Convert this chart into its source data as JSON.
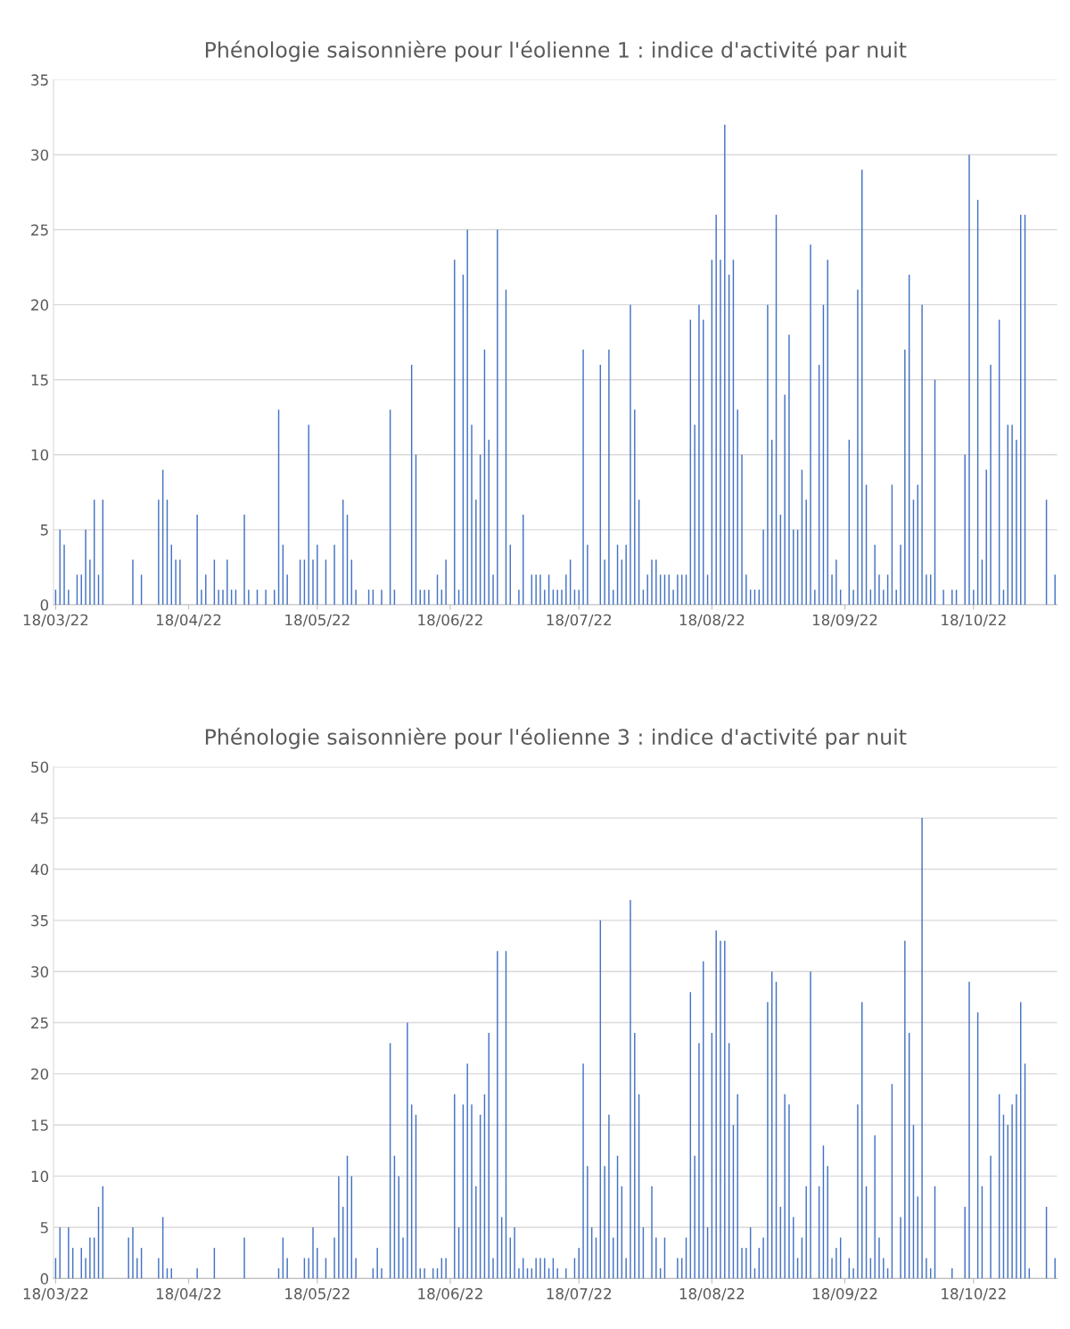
{
  "chart_data": [
    {
      "type": "bar",
      "title": "Phénologie saisonnière pour l'éolienne 1 : indice d'activité par nuit",
      "color": "#4472c4",
      "grid": "y",
      "xlim": [
        "2022-03-17T12:00",
        "2022-11-06T12:00"
      ],
      "xticks": [
        {
          "value": "2022-03-18",
          "label": "18/03/22"
        },
        {
          "value": "2022-04-18",
          "label": "18/04/22"
        },
        {
          "value": "2022-05-18",
          "label": "18/05/22"
        },
        {
          "value": "2022-06-18",
          "label": "18/06/22"
        },
        {
          "value": "2022-07-18",
          "label": "18/07/22"
        },
        {
          "value": "2022-08-18",
          "label": "18/08/22"
        },
        {
          "value": "2022-09-18",
          "label": "18/09/22"
        },
        {
          "value": "2022-10-18",
          "label": "18/10/22"
        }
      ],
      "ylim": [
        0,
        35
      ],
      "yticks": [
        0,
        5,
        10,
        15,
        20,
        25,
        30,
        35
      ],
      "x": [
        "2022-03-18",
        "2022-03-19",
        "2022-03-20",
        "2022-03-21",
        "2022-03-23",
        "2022-03-24",
        "2022-03-25",
        "2022-03-26",
        "2022-03-27",
        "2022-03-28",
        "2022-03-29",
        "2022-04-05",
        "2022-04-07",
        "2022-04-11",
        "2022-04-12",
        "2022-04-13",
        "2022-04-14",
        "2022-04-15",
        "2022-04-16",
        "2022-04-20",
        "2022-04-21",
        "2022-04-22",
        "2022-04-24",
        "2022-04-25",
        "2022-04-26",
        "2022-04-27",
        "2022-04-28",
        "2022-04-29",
        "2022-05-01",
        "2022-05-02",
        "2022-05-04",
        "2022-05-06",
        "2022-05-08",
        "2022-05-09",
        "2022-05-10",
        "2022-05-11",
        "2022-05-14",
        "2022-05-15",
        "2022-05-16",
        "2022-05-17",
        "2022-05-18",
        "2022-05-20",
        "2022-05-22",
        "2022-05-24",
        "2022-05-25",
        "2022-05-26",
        "2022-05-27",
        "2022-05-30",
        "2022-05-31",
        "2022-06-02",
        "2022-06-04",
        "2022-06-05",
        "2022-06-09",
        "2022-06-10",
        "2022-06-11",
        "2022-06-12",
        "2022-06-13",
        "2022-06-15",
        "2022-06-16",
        "2022-06-17",
        "2022-06-19",
        "2022-06-20",
        "2022-06-21",
        "2022-06-22",
        "2022-06-23",
        "2022-06-24",
        "2022-06-25",
        "2022-06-26",
        "2022-06-27",
        "2022-06-28",
        "2022-06-29",
        "2022-07-01",
        "2022-07-02",
        "2022-07-04",
        "2022-07-05",
        "2022-07-07",
        "2022-07-08",
        "2022-07-09",
        "2022-07-10",
        "2022-07-11",
        "2022-07-12",
        "2022-07-13",
        "2022-07-14",
        "2022-07-15",
        "2022-07-16",
        "2022-07-17",
        "2022-07-18",
        "2022-07-19",
        "2022-07-20",
        "2022-07-23",
        "2022-07-24",
        "2022-07-25",
        "2022-07-26",
        "2022-07-27",
        "2022-07-28",
        "2022-07-29",
        "2022-07-30",
        "2022-07-31",
        "2022-08-01",
        "2022-08-02",
        "2022-08-03",
        "2022-08-04",
        "2022-08-05",
        "2022-08-06",
        "2022-08-07",
        "2022-08-08",
        "2022-08-09",
        "2022-08-10",
        "2022-08-11",
        "2022-08-12",
        "2022-08-13",
        "2022-08-14",
        "2022-08-15",
        "2022-08-16",
        "2022-08-17",
        "2022-08-18",
        "2022-08-19",
        "2022-08-20",
        "2022-08-21",
        "2022-08-22",
        "2022-08-23",
        "2022-08-24",
        "2022-08-25",
        "2022-08-26",
        "2022-08-27",
        "2022-08-28",
        "2022-08-29",
        "2022-08-30",
        "2022-08-31",
        "2022-09-01",
        "2022-09-02",
        "2022-09-03",
        "2022-09-04",
        "2022-09-05",
        "2022-09-06",
        "2022-09-07",
        "2022-09-08",
        "2022-09-09",
        "2022-09-10",
        "2022-09-11",
        "2022-09-12",
        "2022-09-13",
        "2022-09-14",
        "2022-09-15",
        "2022-09-16",
        "2022-09-17",
        "2022-09-19",
        "2022-09-20",
        "2022-09-21",
        "2022-09-22",
        "2022-09-23",
        "2022-09-24",
        "2022-09-25",
        "2022-09-26",
        "2022-09-27",
        "2022-09-28",
        "2022-09-29",
        "2022-09-30",
        "2022-10-01",
        "2022-10-02",
        "2022-10-03",
        "2022-10-04",
        "2022-10-05",
        "2022-10-06",
        "2022-10-07",
        "2022-10-08",
        "2022-10-09",
        "2022-10-11",
        "2022-10-13",
        "2022-10-14",
        "2022-10-16",
        "2022-10-17",
        "2022-10-18",
        "2022-10-19",
        "2022-10-20",
        "2022-10-21",
        "2022-10-22",
        "2022-10-24",
        "2022-10-25",
        "2022-10-26",
        "2022-10-27",
        "2022-10-28",
        "2022-10-29",
        "2022-10-30",
        "2022-11-04",
        "2022-11-06"
      ],
      "values": [
        1,
        5,
        4,
        1,
        2,
        2,
        5,
        3,
        7,
        2,
        7,
        3,
        2,
        7,
        9,
        7,
        4,
        3,
        3,
        6,
        1,
        2,
        3,
        1,
        1,
        3,
        1,
        1,
        6,
        1,
        1,
        1,
        1,
        13,
        4,
        2,
        3,
        3,
        12,
        3,
        4,
        3,
        4,
        7,
        6,
        3,
        1,
        1,
        1,
        1,
        13,
        1,
        16,
        10,
        1,
        1,
        1,
        2,
        1,
        3,
        23,
        1,
        22,
        25,
        12,
        7,
        10,
        17,
        11,
        2,
        25,
        21,
        4,
        1,
        6,
        2,
        2,
        2,
        1,
        2,
        1,
        1,
        1,
        2,
        3,
        1,
        1,
        17,
        4,
        16,
        3,
        17,
        1,
        4,
        3,
        4,
        20,
        13,
        7,
        1,
        2,
        3,
        3,
        2,
        2,
        2,
        1,
        2,
        2,
        2,
        19,
        12,
        20,
        19,
        2,
        23,
        26,
        23,
        32,
        22,
        23,
        13,
        10,
        2,
        1,
        1,
        1,
        5,
        20,
        11,
        26,
        6,
        14,
        18,
        5,
        5,
        9,
        7,
        24,
        1,
        16,
        20,
        23,
        2,
        3,
        1,
        11,
        1,
        21,
        29,
        8,
        1,
        4,
        2,
        1,
        2,
        8,
        1,
        4,
        17,
        22,
        7,
        8,
        20,
        2,
        2,
        15,
        1,
        1,
        1,
        10,
        30,
        1,
        27,
        3,
        9,
        16,
        19,
        1,
        12,
        12,
        11,
        26,
        26,
        7,
        2
      ]
    },
    {
      "type": "bar",
      "title": "Phénologie saisonnière pour l'éolienne 3 : indice d'activité par nuit",
      "color": "#4472c4",
      "grid": "y",
      "xlim": [
        "2022-03-17T12:00",
        "2022-11-06T12:00"
      ],
      "xticks": [
        {
          "value": "2022-03-18",
          "label": "18/03/22"
        },
        {
          "value": "2022-04-18",
          "label": "18/04/22"
        },
        {
          "value": "2022-05-18",
          "label": "18/05/22"
        },
        {
          "value": "2022-06-18",
          "label": "18/06/22"
        },
        {
          "value": "2022-07-18",
          "label": "18/07/22"
        },
        {
          "value": "2022-08-18",
          "label": "18/08/22"
        },
        {
          "value": "2022-09-18",
          "label": "18/09/22"
        },
        {
          "value": "2022-10-18",
          "label": "18/10/22"
        }
      ],
      "ylim": [
        0,
        50
      ],
      "yticks": [
        0,
        5,
        10,
        15,
        20,
        25,
        30,
        35,
        40,
        45,
        50
      ],
      "x": [
        "2022-03-18",
        "2022-03-19",
        "2022-03-21",
        "2022-03-22",
        "2022-03-24",
        "2022-03-25",
        "2022-03-26",
        "2022-03-27",
        "2022-03-28",
        "2022-03-29",
        "2022-04-04",
        "2022-04-05",
        "2022-04-06",
        "2022-04-07",
        "2022-04-11",
        "2022-04-12",
        "2022-04-13",
        "2022-04-14",
        "2022-04-20",
        "2022-04-24",
        "2022-05-01",
        "2022-05-09",
        "2022-05-10",
        "2022-05-11",
        "2022-05-15",
        "2022-05-16",
        "2022-05-17",
        "2022-05-18",
        "2022-05-20",
        "2022-05-22",
        "2022-05-23",
        "2022-05-24",
        "2022-05-25",
        "2022-05-26",
        "2022-05-27",
        "2022-05-31",
        "2022-06-01",
        "2022-06-02",
        "2022-06-04",
        "2022-06-05",
        "2022-06-06",
        "2022-06-07",
        "2022-06-08",
        "2022-06-09",
        "2022-06-10",
        "2022-06-11",
        "2022-06-12",
        "2022-06-14",
        "2022-06-15",
        "2022-06-16",
        "2022-06-17",
        "2022-06-19",
        "2022-06-20",
        "2022-06-21",
        "2022-06-22",
        "2022-06-23",
        "2022-06-24",
        "2022-06-25",
        "2022-06-26",
        "2022-06-27",
        "2022-06-28",
        "2022-06-29",
        "2022-06-30",
        "2022-07-01",
        "2022-07-02",
        "2022-07-03",
        "2022-07-04",
        "2022-07-05",
        "2022-07-06",
        "2022-07-07",
        "2022-07-08",
        "2022-07-09",
        "2022-07-10",
        "2022-07-11",
        "2022-07-12",
        "2022-07-13",
        "2022-07-15",
        "2022-07-17",
        "2022-07-18",
        "2022-07-19",
        "2022-07-20",
        "2022-07-21",
        "2022-07-22",
        "2022-07-23",
        "2022-07-24",
        "2022-07-25",
        "2022-07-26",
        "2022-07-27",
        "2022-07-28",
        "2022-07-29",
        "2022-07-30",
        "2022-07-31",
        "2022-08-01",
        "2022-08-02",
        "2022-08-04",
        "2022-08-05",
        "2022-08-06",
        "2022-08-07",
        "2022-08-10",
        "2022-08-11",
        "2022-08-12",
        "2022-08-13",
        "2022-08-14",
        "2022-08-15",
        "2022-08-16",
        "2022-08-17",
        "2022-08-18",
        "2022-08-19",
        "2022-08-20",
        "2022-08-21",
        "2022-08-22",
        "2022-08-23",
        "2022-08-24",
        "2022-08-25",
        "2022-08-26",
        "2022-08-27",
        "2022-08-28",
        "2022-08-29",
        "2022-08-30",
        "2022-08-31",
        "2022-09-01",
        "2022-09-02",
        "2022-09-03",
        "2022-09-04",
        "2022-09-05",
        "2022-09-06",
        "2022-09-07",
        "2022-09-08",
        "2022-09-09",
        "2022-09-10",
        "2022-09-12",
        "2022-09-13",
        "2022-09-14",
        "2022-09-15",
        "2022-09-16",
        "2022-09-17",
        "2022-09-19",
        "2022-09-20",
        "2022-09-21",
        "2022-09-22",
        "2022-09-23",
        "2022-09-24",
        "2022-09-25",
        "2022-09-26",
        "2022-09-27",
        "2022-09-28",
        "2022-09-29",
        "2022-10-01",
        "2022-10-02",
        "2022-10-03",
        "2022-10-04",
        "2022-10-05",
        "2022-10-06",
        "2022-10-07",
        "2022-10-08",
        "2022-10-09",
        "2022-10-13",
        "2022-10-16",
        "2022-10-17",
        "2022-10-19",
        "2022-10-20",
        "2022-10-22",
        "2022-10-24",
        "2022-10-25",
        "2022-10-26",
        "2022-10-27",
        "2022-10-28",
        "2022-10-29",
        "2022-10-30",
        "2022-10-31",
        "2022-11-04",
        "2022-11-06"
      ],
      "values": [
        2,
        5,
        5,
        3,
        3,
        2,
        4,
        4,
        7,
        9,
        4,
        5,
        2,
        3,
        2,
        6,
        1,
        1,
        1,
        3,
        4,
        1,
        4,
        2,
        2,
        2,
        5,
        3,
        2,
        4,
        10,
        7,
        12,
        10,
        2,
        1,
        3,
        1,
        23,
        12,
        10,
        4,
        25,
        17,
        16,
        1,
        1,
        1,
        1,
        2,
        2,
        18,
        5,
        17,
        21,
        17,
        9,
        16,
        18,
        24,
        2,
        32,
        6,
        32,
        4,
        5,
        1,
        2,
        1,
        1,
        2,
        2,
        2,
        1,
        2,
        1,
        1,
        2,
        3,
        21,
        11,
        5,
        4,
        35,
        11,
        16,
        4,
        12,
        9,
        2,
        37,
        24,
        18,
        5,
        9,
        4,
        1,
        4,
        2,
        2,
        4,
        28,
        12,
        23,
        31,
        5,
        24,
        34,
        33,
        33,
        23,
        15,
        18,
        3,
        3,
        5,
        1,
        3,
        4,
        27,
        30,
        29,
        7,
        18,
        17,
        6,
        2,
        4,
        9,
        30,
        9,
        13,
        11,
        2,
        3,
        4,
        2,
        1,
        17,
        27,
        9,
        2,
        14,
        4,
        2,
        1,
        19,
        6,
        33,
        24,
        15,
        8,
        45,
        2,
        1,
        9,
        1,
        7,
        29,
        26,
        9,
        12,
        18,
        16,
        15,
        17,
        18,
        27,
        21,
        1,
        7,
        2
      ]
    }
  ]
}
